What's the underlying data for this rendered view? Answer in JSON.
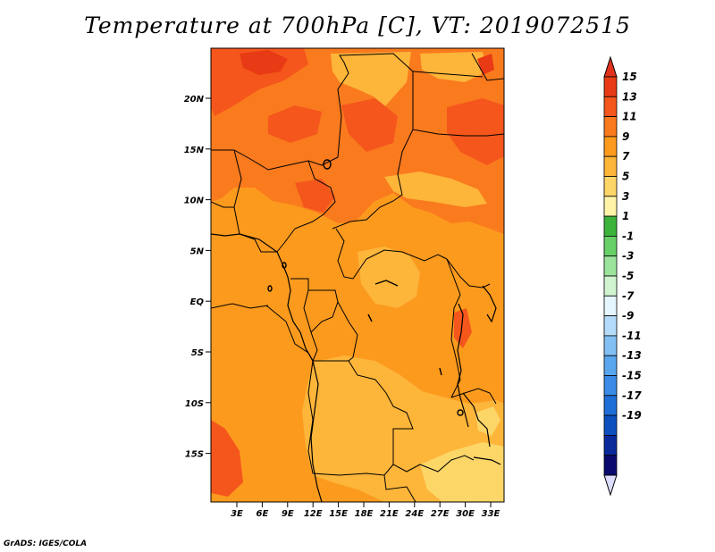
{
  "title": "Temperature at 700hPa [C], VT: 2019072515",
  "credit": "GrADS: IGES/COLA",
  "map": {
    "region": "Central Africa",
    "variable": "Temperature",
    "level": "700hPa",
    "units": "C",
    "valid_time": "2019072515",
    "lat_labels": [
      "20N",
      "15N",
      "10N",
      "5N",
      "EQ",
      "5S",
      "10S",
      "15S"
    ],
    "lon_labels": [
      "3E",
      "6E",
      "9E",
      "12E",
      "15E",
      "18E",
      "21E",
      "24E",
      "27E",
      "30E",
      "33E"
    ]
  },
  "colorbar": {
    "labels": [
      "15",
      "13",
      "11",
      "9",
      "7",
      "5",
      "3",
      "1",
      "-1",
      "-3",
      "-5",
      "-7",
      "-9",
      "-11",
      "-13",
      "-15",
      "-17",
      "-19"
    ],
    "colors": [
      "#e83a14",
      "#f4561c",
      "#fa7a1e",
      "#fc9a1e",
      "#fdb53a",
      "#fdd668",
      "#fff4a8",
      "#3cb43c",
      "#68d068",
      "#9ce49c",
      "#d0f4d0",
      "#e6f6ff",
      "#b4dcfa",
      "#82c0f4",
      "#5aa6ee",
      "#3a8ce6",
      "#1e6ed8",
      "#0c50c0",
      "#0a2a9c",
      "#0a0a6e"
    ],
    "over_color": "#e0321c",
    "under_color": "#dcdcff"
  },
  "colors": {
    "c15": "#e83a14",
    "c13": "#f4561c",
    "c11": "#fa7a1e",
    "c9": "#fc9a1e",
    "c7": "#fdb53a",
    "c5": "#fdd668"
  }
}
